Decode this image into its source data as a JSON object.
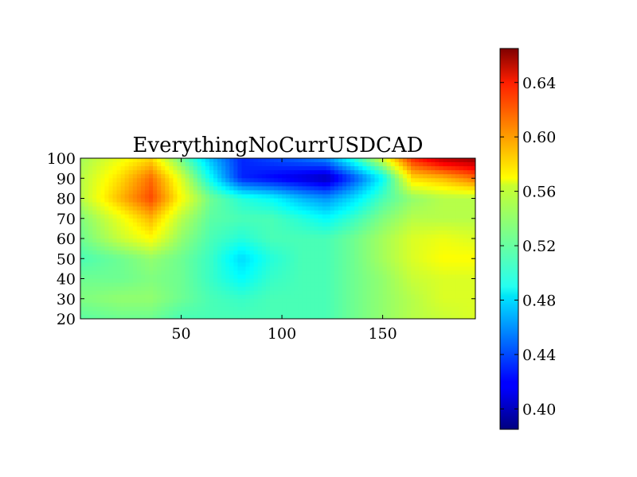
{
  "chart_data": {
    "type": "heatmap",
    "title": "EverythingNoCurrUSDCAD",
    "xlabel": "",
    "ylabel": "",
    "xlim": [
      0,
      196
    ],
    "ylim": [
      20,
      100
    ],
    "x_ticks": [
      50,
      100,
      150
    ],
    "y_ticks": [
      20,
      30,
      40,
      50,
      60,
      70,
      80,
      90,
      100
    ],
    "colormap": "jet",
    "color_range": [
      0.385,
      0.665
    ],
    "colorbar_ticks": [
      0.4,
      0.44,
      0.48,
      0.52,
      0.56,
      0.6,
      0.64
    ],
    "colorbar_tick_labels": [
      "0.40",
      "0.44",
      "0.48",
      "0.52",
      "0.56",
      "0.60",
      "0.64"
    ],
    "grid": false,
    "x": [
      0,
      20,
      35,
      50,
      65,
      80,
      95,
      110,
      122,
      135,
      150,
      165,
      180,
      196
    ],
    "y": [
      20,
      30,
      40,
      50,
      60,
      70,
      80,
      90,
      100
    ],
    "z": [
      [
        0.515,
        0.52,
        0.52,
        0.51,
        0.51,
        0.51,
        0.51,
        0.51,
        0.51,
        0.52,
        0.53,
        0.54,
        0.545,
        0.55
      ],
      [
        0.525,
        0.53,
        0.53,
        0.52,
        0.51,
        0.505,
        0.51,
        0.51,
        0.51,
        0.52,
        0.53,
        0.54,
        0.55,
        0.55
      ],
      [
        0.52,
        0.52,
        0.525,
        0.52,
        0.505,
        0.49,
        0.505,
        0.51,
        0.51,
        0.52,
        0.53,
        0.545,
        0.55,
        0.55
      ],
      [
        0.51,
        0.52,
        0.53,
        0.52,
        0.505,
        0.48,
        0.5,
        0.51,
        0.51,
        0.52,
        0.535,
        0.55,
        0.56,
        0.56
      ],
      [
        0.52,
        0.545,
        0.56,
        0.53,
        0.51,
        0.5,
        0.51,
        0.51,
        0.51,
        0.52,
        0.535,
        0.55,
        0.555,
        0.55
      ],
      [
        0.525,
        0.555,
        0.58,
        0.54,
        0.515,
        0.51,
        0.51,
        0.5,
        0.49,
        0.505,
        0.525,
        0.54,
        0.54,
        0.54
      ],
      [
        0.54,
        0.58,
        0.61,
        0.56,
        0.52,
        0.5,
        0.49,
        0.47,
        0.46,
        0.48,
        0.51,
        0.53,
        0.54,
        0.54
      ],
      [
        0.54,
        0.57,
        0.6,
        0.55,
        0.49,
        0.43,
        0.42,
        0.41,
        0.4,
        0.44,
        0.49,
        0.57,
        0.58,
        0.6
      ],
      [
        0.535,
        0.555,
        0.57,
        0.52,
        0.47,
        0.43,
        0.44,
        0.45,
        0.46,
        0.5,
        0.55,
        0.62,
        0.65,
        0.66
      ]
    ]
  }
}
